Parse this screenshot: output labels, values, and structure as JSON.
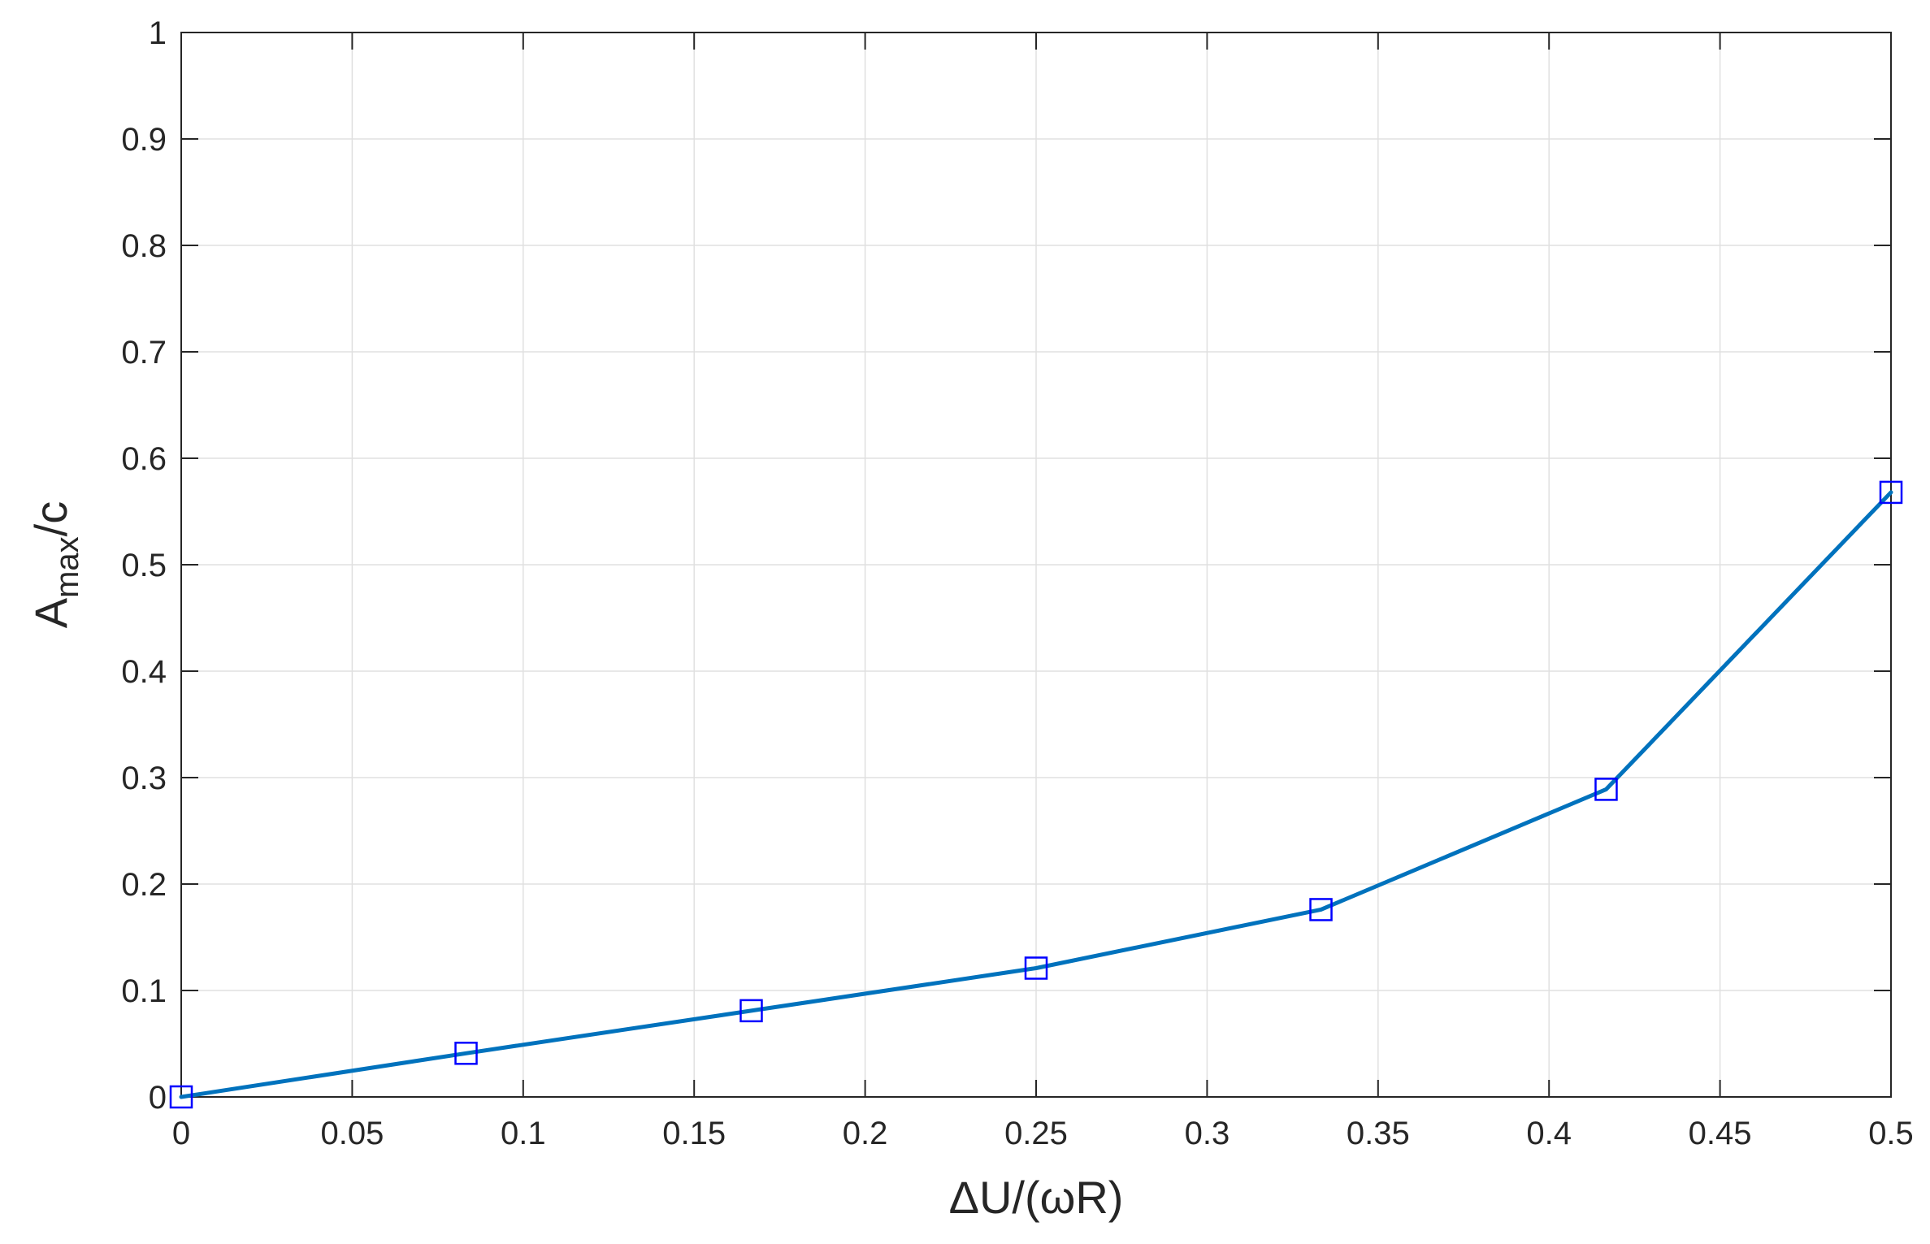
{
  "chart_data": {
    "type": "line",
    "x": [
      0,
      0.0833,
      0.1667,
      0.25,
      0.3333,
      0.4167,
      0.5
    ],
    "series": [
      {
        "values": [
          0.0,
          0.041,
          0.081,
          0.121,
          0.176,
          0.289,
          0.568
        ],
        "line_color": "#0072BD",
        "marker": "square",
        "marker_color": "#0000FF"
      }
    ],
    "xlabel": "ΔU/(ωR)",
    "ylabel": {
      "main": "A",
      "subscript": "max",
      "suffix": "/c"
    },
    "xlim": [
      0,
      0.5
    ],
    "ylim": [
      0,
      1
    ],
    "xticks": [
      "0",
      "0.05",
      "0.1",
      "0.15",
      "0.2",
      "0.25",
      "0.3",
      "0.35",
      "0.4",
      "0.45",
      "0.5"
    ],
    "yticks": [
      "0",
      "0.1",
      "0.2",
      "0.3",
      "0.4",
      "0.5",
      "0.6",
      "0.7",
      "0.8",
      "0.9",
      "1"
    ],
    "grid": true
  }
}
